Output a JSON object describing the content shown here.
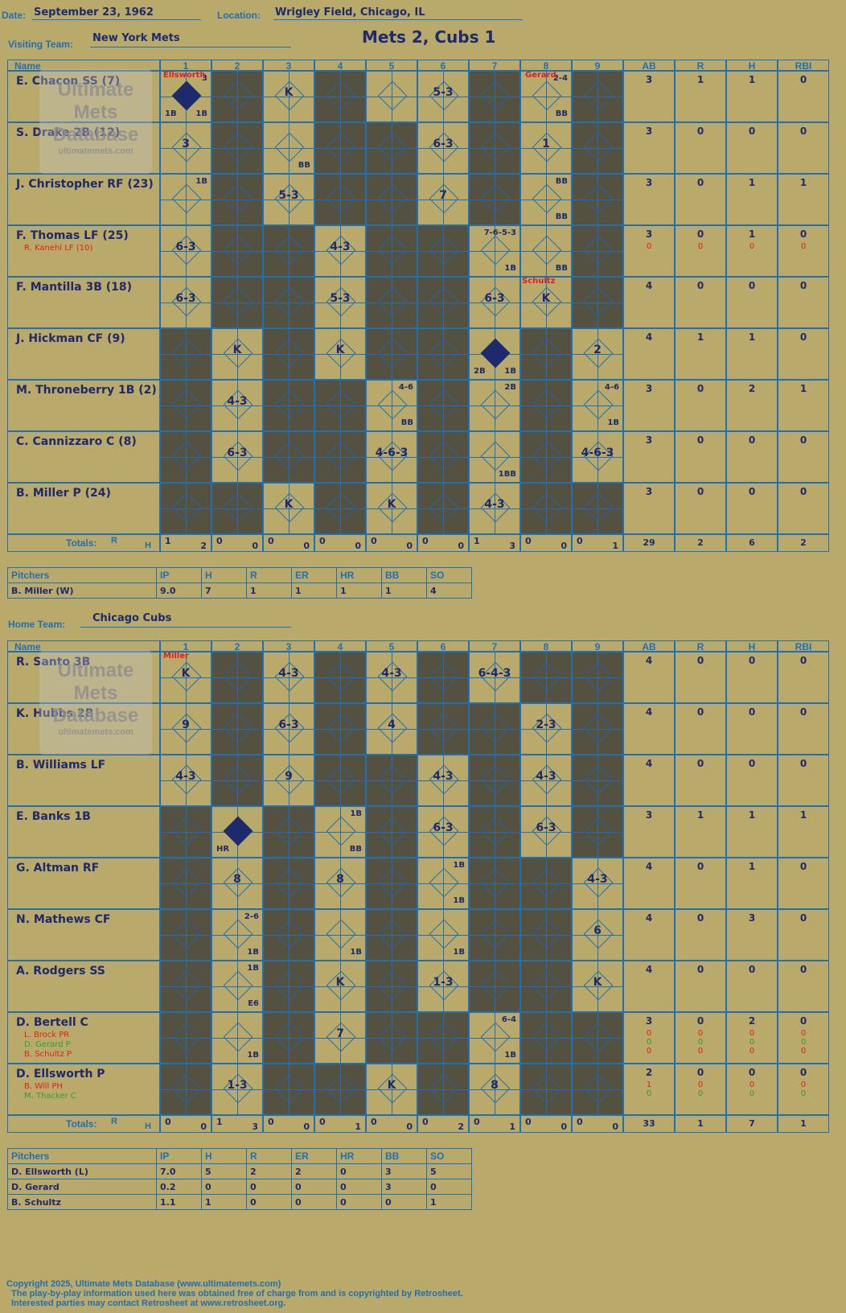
{
  "header": {
    "date_label": "Date:",
    "date": "September 23, 1962",
    "location_label": "Location:",
    "location": "Wrigley Field, Chicago, IL",
    "visiting_label": "Visiting Team:",
    "visiting_team": "New York Mets",
    "home_label": "Home Team:",
    "home_team": "Chicago Cubs",
    "final": "Mets 2, Cubs 1"
  },
  "columns": {
    "name": "Name",
    "innings": [
      "1",
      "2",
      "3",
      "4",
      "5",
      "6",
      "7",
      "8",
      "9"
    ],
    "stats": [
      "AB",
      "R",
      "H",
      "RBI"
    ],
    "totals": "Totals:",
    "r": "R",
    "h": "H"
  },
  "watermark": {
    "line1": "Ultimate",
    "line2": "Mets",
    "line3": "Database",
    "url": "ultimatemets.com"
  },
  "visitors": {
    "batters": [
      {
        "name": "E. Chacon SS (7)",
        "subs": [],
        "stats": [
          "3",
          "1",
          "1",
          "0"
        ],
        "sub_stats": []
      },
      {
        "name": "S. Drake 2B (12)",
        "subs": [],
        "stats": [
          "3",
          "0",
          "0",
          "0"
        ],
        "sub_stats": []
      },
      {
        "name": "J. Christopher RF (23)",
        "subs": [],
        "stats": [
          "3",
          "0",
          "1",
          "1"
        ],
        "sub_stats": []
      },
      {
        "name": "F. Thomas LF (25)",
        "subs": [
          "R. Kanehl LF (10)"
        ],
        "stats": [
          "3",
          "0",
          "1",
          "0"
        ],
        "sub_stats": [
          [
            "0",
            "0",
            "0",
            "0"
          ]
        ]
      },
      {
        "name": "F. Mantilla 3B (18)",
        "subs": [],
        "stats": [
          "4",
          "0",
          "0",
          "0"
        ],
        "sub_stats": []
      },
      {
        "name": "J. Hickman CF (9)",
        "subs": [],
        "stats": [
          "4",
          "1",
          "1",
          "0"
        ],
        "sub_stats": []
      },
      {
        "name": "M. Throneberry 1B (2)",
        "subs": [],
        "stats": [
          "3",
          "0",
          "2",
          "1"
        ],
        "sub_stats": []
      },
      {
        "name": "C. Cannizzaro C (8)",
        "subs": [],
        "stats": [
          "3",
          "0",
          "0",
          "0"
        ],
        "sub_stats": []
      },
      {
        "name": "B. Miller P (24)",
        "subs": [],
        "stats": [
          "3",
          "0",
          "0",
          "0"
        ],
        "sub_stats": []
      }
    ],
    "inning_totals": [
      [
        "1",
        "2"
      ],
      [
        "0",
        "0"
      ],
      [
        "0",
        "0"
      ],
      [
        "0",
        "0"
      ],
      [
        "0",
        "0"
      ],
      [
        "0",
        "0"
      ],
      [
        "1",
        "3"
      ],
      [
        "0",
        "0"
      ],
      [
        "0",
        "1"
      ]
    ],
    "game_totals": [
      "29",
      "2",
      "6",
      "2"
    ],
    "pitcher_note": {
      "ellsworth": "Ellsworth",
      "gerard": "Gerard",
      "schultz": "Schultz"
    },
    "pitchers_header": [
      "Pitchers",
      "IP",
      "H",
      "R",
      "ER",
      "HR",
      "BB",
      "SO"
    ],
    "pitchers": [
      [
        "B. Miller (W)",
        "9.0",
        "7",
        "1",
        "1",
        "1",
        "1",
        "4"
      ]
    ]
  },
  "home": {
    "batters": [
      {
        "name": "R. Santo 3B",
        "subs": [],
        "stats": [
          "4",
          "0",
          "0",
          "0"
        ],
        "sub_stats": []
      },
      {
        "name": "K. Hubbs 2B",
        "subs": [],
        "stats": [
          "4",
          "0",
          "0",
          "0"
        ],
        "sub_stats": []
      },
      {
        "name": "B. Williams LF",
        "subs": [],
        "stats": [
          "4",
          "0",
          "0",
          "0"
        ],
        "sub_stats": []
      },
      {
        "name": "E. Banks 1B",
        "subs": [],
        "stats": [
          "3",
          "1",
          "1",
          "1"
        ],
        "sub_stats": []
      },
      {
        "name": "G. Altman RF",
        "subs": [],
        "stats": [
          "4",
          "0",
          "1",
          "0"
        ],
        "sub_stats": []
      },
      {
        "name": "N. Mathews CF",
        "subs": [],
        "stats": [
          "4",
          "0",
          "3",
          "0"
        ],
        "sub_stats": []
      },
      {
        "name": "A. Rodgers SS",
        "subs": [],
        "stats": [
          "4",
          "0",
          "0",
          "0"
        ],
        "sub_stats": []
      },
      {
        "name": "D. Bertell C",
        "subs": [
          "L. Brock PR",
          "D. Gerard P",
          "B. Schultz P"
        ],
        "stats": [
          "3",
          "0",
          "2",
          "0"
        ],
        "sub_stats": [
          [
            "0",
            "0",
            "0",
            "0"
          ],
          [
            "0",
            "0",
            "0",
            "0"
          ],
          [
            "0",
            "0",
            "0",
            "0"
          ]
        ]
      },
      {
        "name": "D. Ellsworth P",
        "subs": [
          "B. Will PH",
          "M. Thacker C"
        ],
        "stats": [
          "2",
          "0",
          "0",
          "0"
        ],
        "sub_stats": [
          [
            "1",
            "0",
            "0",
            "0"
          ],
          [
            "0",
            "0",
            "0",
            "0"
          ]
        ]
      }
    ],
    "inning_totals": [
      [
        "0",
        "0"
      ],
      [
        "1",
        "3"
      ],
      [
        "0",
        "0"
      ],
      [
        "0",
        "1"
      ],
      [
        "0",
        "0"
      ],
      [
        "0",
        "2"
      ],
      [
        "0",
        "1"
      ],
      [
        "0",
        "0"
      ],
      [
        "0",
        "0"
      ]
    ],
    "game_totals": [
      "33",
      "1",
      "7",
      "1"
    ],
    "pitcher_note": {
      "miller": "Miller"
    },
    "pitchers_header": [
      "Pitchers",
      "IP",
      "H",
      "R",
      "ER",
      "HR",
      "BB",
      "SO"
    ],
    "pitchers": [
      [
        "D. Ellsworth (L)",
        "7.0",
        "5",
        "2",
        "2",
        "0",
        "3",
        "5"
      ],
      [
        "D. Gerard",
        "0.2",
        "0",
        "0",
        "0",
        "0",
        "3",
        "0"
      ],
      [
        "B. Schultz",
        "1.1",
        "1",
        "0",
        "0",
        "0",
        "0",
        "1"
      ]
    ]
  },
  "plays_visitors": [
    [
      {
        "i": 0,
        "r": "",
        "a": "3",
        "b": "1B",
        "c": "1B",
        "f": true
      },
      {
        "i": 2,
        "r": "K"
      },
      {
        "i": 5,
        "r": "5-3"
      },
      {
        "i": 7,
        "r": "",
        "a": "2-4",
        "c": "BB"
      }
    ],
    [
      {
        "i": 0,
        "r": "3"
      },
      {
        "i": 2,
        "r": "",
        "c": "BB"
      },
      {
        "i": 5,
        "r": "6-3"
      },
      {
        "i": 7,
        "r": "1"
      }
    ],
    [
      {
        "i": 0,
        "r": "",
        "a": "1B"
      },
      {
        "i": 2,
        "r": "5-3"
      },
      {
        "i": 5,
        "r": "7"
      },
      {
        "i": 7,
        "r": "",
        "a": "BB",
        "c": "BB"
      }
    ],
    [
      {
        "i": 0,
        "r": "6-3"
      },
      {
        "i": 3,
        "r": "4-3"
      },
      {
        "i": 6,
        "r": "",
        "a": "7-6-5-3",
        "c": "1B"
      },
      {
        "i": 7,
        "r": "",
        "c": "BB"
      }
    ],
    [
      {
        "i": 0,
        "r": "6-3"
      },
      {
        "i": 3,
        "r": "5-3"
      },
      {
        "i": 6,
        "r": "6-3"
      },
      {
        "i": 7,
        "r": "K"
      }
    ],
    [
      {
        "i": 1,
        "r": "K"
      },
      {
        "i": 3,
        "r": "K"
      },
      {
        "i": 6,
        "r": "",
        "b": "2B",
        "c": "1B",
        "f": true
      },
      {
        "i": 8,
        "r": "2"
      }
    ],
    [
      {
        "i": 1,
        "r": "4-3"
      },
      {
        "i": 4,
        "r": "",
        "a": "4-6",
        "c": "BB"
      },
      {
        "i": 6,
        "r": "",
        "a": "2B"
      },
      {
        "i": 8,
        "r": "",
        "a": "4-6",
        "c": "1B"
      }
    ],
    [
      {
        "i": 1,
        "r": "6-3"
      },
      {
        "i": 4,
        "r": "4-6-3"
      },
      {
        "i": 6,
        "r": "",
        "c": "1BB"
      },
      {
        "i": 8,
        "r": "4-6-3"
      }
    ],
    [
      {
        "i": 2,
        "r": "K"
      },
      {
        "i": 4,
        "r": "K"
      },
      {
        "i": 6,
        "r": "4-3"
      }
    ]
  ],
  "plays_home": [
    [
      {
        "i": 0,
        "r": "K"
      },
      {
        "i": 2,
        "r": "4-3"
      },
      {
        "i": 4,
        "r": "4-3"
      },
      {
        "i": 6,
        "r": "6-4-3"
      }
    ],
    [
      {
        "i": 0,
        "r": "9"
      },
      {
        "i": 2,
        "r": "6-3"
      },
      {
        "i": 4,
        "r": "4"
      },
      {
        "i": 7,
        "r": "2-3"
      }
    ],
    [
      {
        "i": 0,
        "r": "4-3"
      },
      {
        "i": 2,
        "r": "9"
      },
      {
        "i": 5,
        "r": "4-3"
      },
      {
        "i": 7,
        "r": "4-3"
      }
    ],
    [
      {
        "i": 1,
        "r": "",
        "b": "HR",
        "f": true
      },
      {
        "i": 3,
        "r": "",
        "a": "1B",
        "c": "BB"
      },
      {
        "i": 5,
        "r": "6-3"
      },
      {
        "i": 7,
        "r": "6-3"
      }
    ],
    [
      {
        "i": 1,
        "r": "8"
      },
      {
        "i": 3,
        "r": "8"
      },
      {
        "i": 5,
        "r": "",
        "a": "1B",
        "c": "1B"
      },
      {
        "i": 8,
        "r": "4-3"
      }
    ],
    [
      {
        "i": 1,
        "r": "",
        "a": "2-6",
        "c": "1B"
      },
      {
        "i": 3,
        "r": "",
        "c": "1B"
      },
      {
        "i": 5,
        "r": "",
        "c": "1B"
      },
      {
        "i": 8,
        "r": "6"
      }
    ],
    [
      {
        "i": 1,
        "r": "",
        "a": "1B",
        "c": "E6"
      },
      {
        "i": 3,
        "r": "K"
      },
      {
        "i": 5,
        "r": "1-3"
      },
      {
        "i": 8,
        "r": "K"
      }
    ],
    [
      {
        "i": 1,
        "r": "",
        "c": "1B"
      },
      {
        "i": 3,
        "r": "7"
      },
      {
        "i": 6,
        "r": "",
        "a": "6-4",
        "c": "1B"
      }
    ],
    [
      {
        "i": 1,
        "r": "1-3"
      },
      {
        "i": 4,
        "r": "K"
      },
      {
        "i": 6,
        "r": "8"
      }
    ]
  ],
  "footer": {
    "line1": "Copyright 2025, Ultimate Mets Database (www.ultimatemets.com)",
    "line2": "The play-by-play information used here was obtained free of charge from and is copyrighted by Retrosheet.",
    "line3": "Interested parties may contact Retrosheet at www.retrosheet.org."
  }
}
